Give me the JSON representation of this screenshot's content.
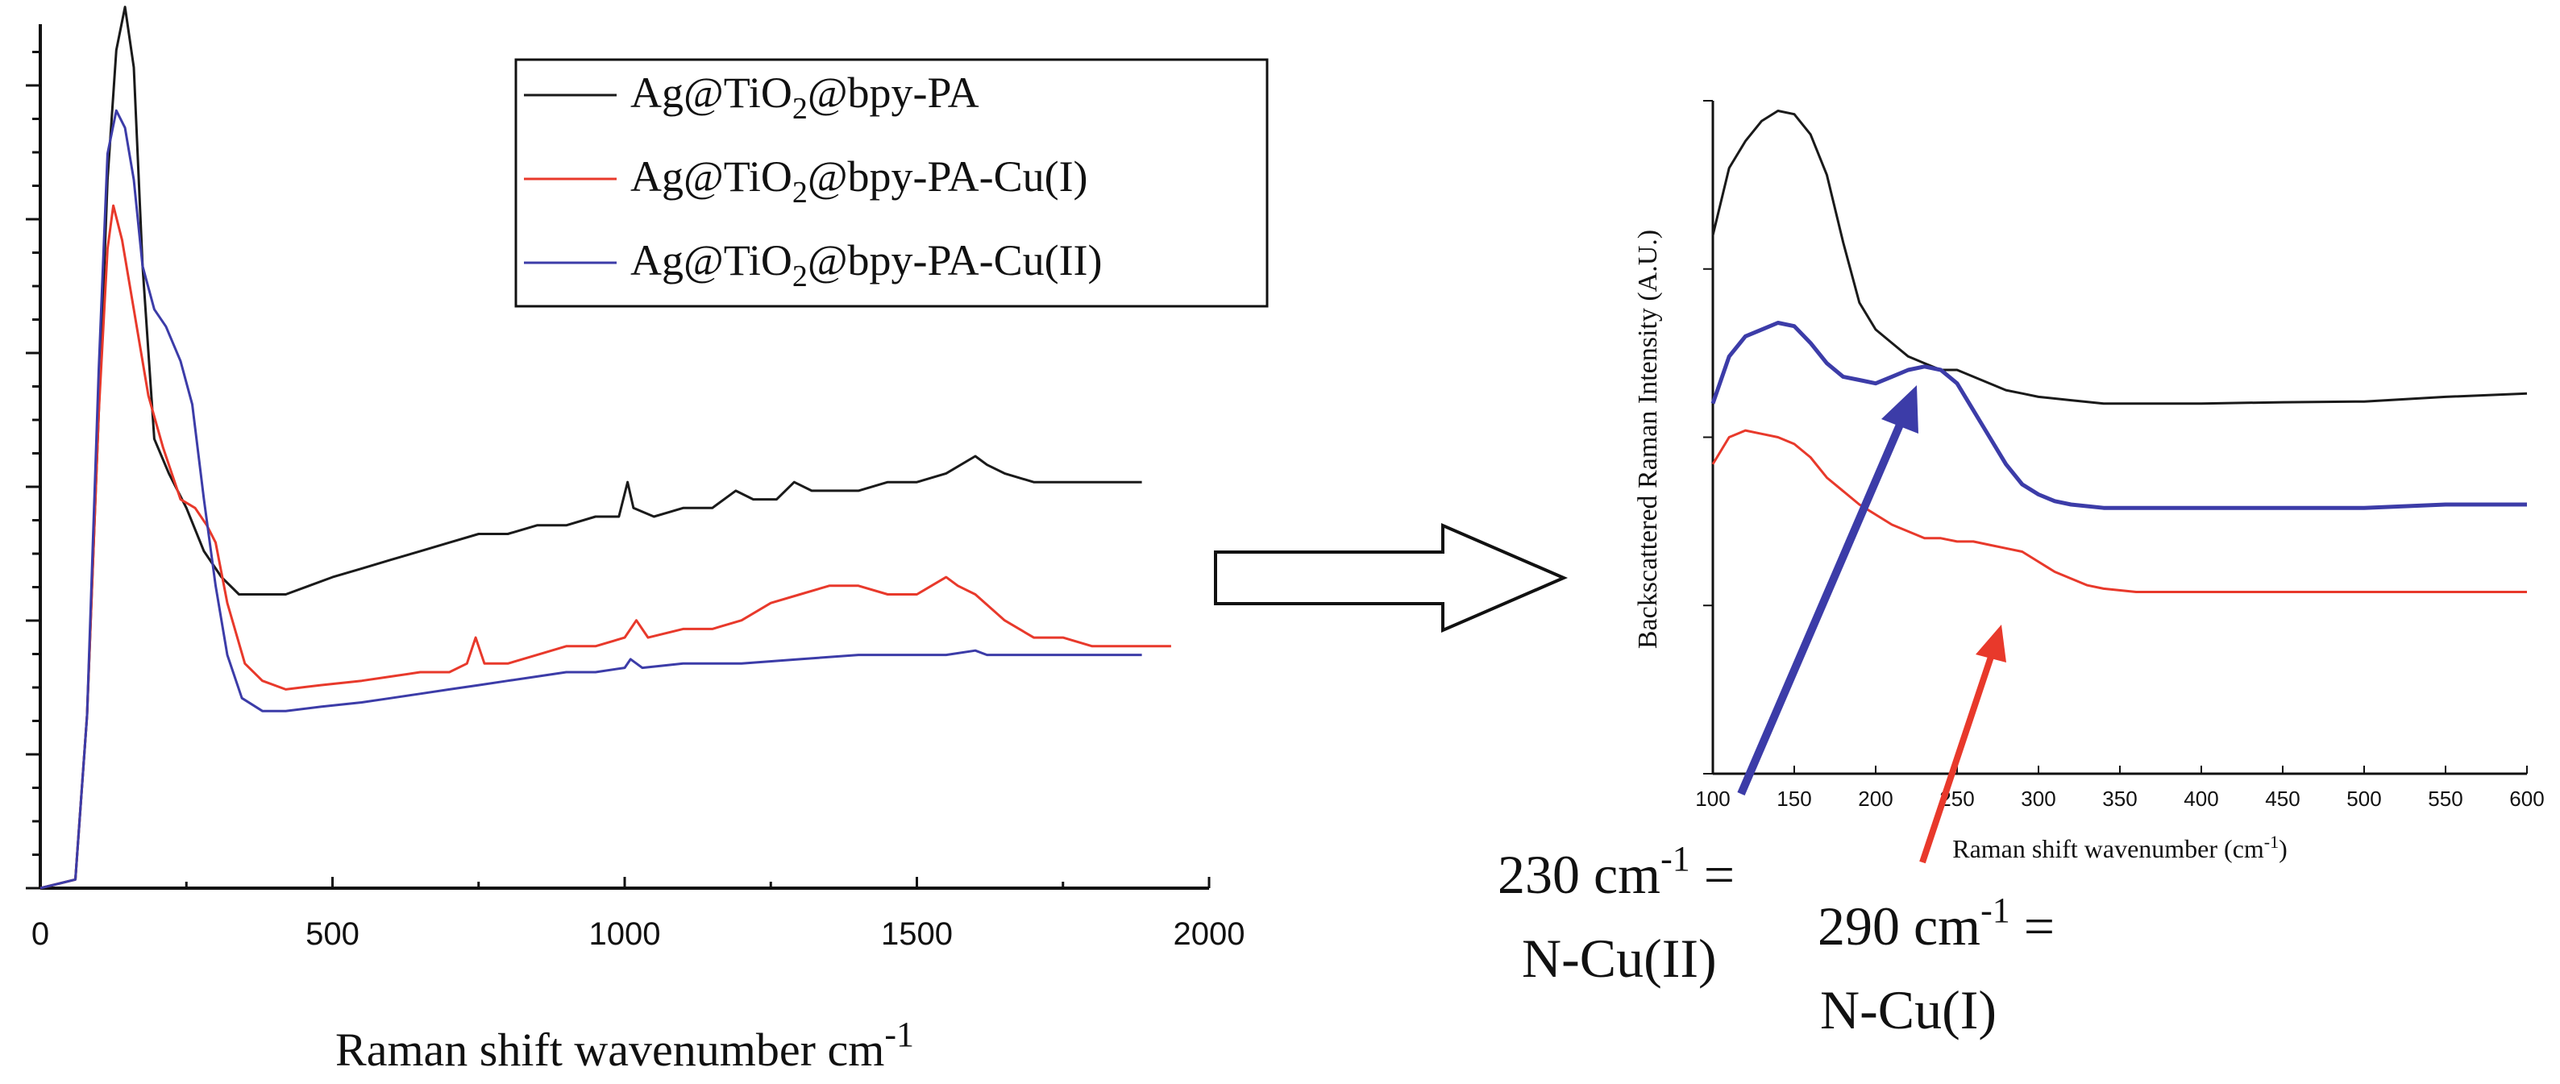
{
  "colors": {
    "black_series": "#1a1a1a",
    "red_series": "#e8392b",
    "blue_series": "#3c3ca8",
    "axis": "#111111"
  },
  "arrow_label": "right-arrow-icon",
  "chart_data": [
    {
      "type": "line",
      "title": "",
      "xlabel": "Raman shift wavenumber cm",
      "xlabel_superscript": "-1",
      "ylabel": "",
      "xlim": [
        0,
        2000
      ],
      "ylim": [
        0,
        1.0
      ],
      "xticks": [
        "0",
        "500",
        "1000",
        "1500",
        "2000"
      ],
      "legend": {
        "placement": "top-right",
        "entries": [
          {
            "prefix": "Ag@TiO",
            "sub": "2",
            "suffix": "@bpy-PA"
          },
          {
            "prefix": "Ag@TiO",
            "sub": "2",
            "suffix": "@bpy-PA-Cu(I)"
          },
          {
            "prefix": "Ag@TiO",
            "sub": "2",
            "suffix": "@bpy-PA-Cu(II)"
          }
        ]
      },
      "series": [
        {
          "name": "Ag@TiO2@bpy-PA",
          "color_key": "black_series",
          "points": [
            [
              0,
              0.0
            ],
            [
              60,
              0.01
            ],
            [
              80,
              0.2
            ],
            [
              100,
              0.55
            ],
            [
              115,
              0.82
            ],
            [
              130,
              0.97
            ],
            [
              145,
              1.02
            ],
            [
              160,
              0.95
            ],
            [
              175,
              0.72
            ],
            [
              195,
              0.52
            ],
            [
              220,
              0.48
            ],
            [
              250,
              0.44
            ],
            [
              280,
              0.39
            ],
            [
              310,
              0.36
            ],
            [
              340,
              0.34
            ],
            [
              380,
              0.34
            ],
            [
              420,
              0.34
            ],
            [
              460,
              0.35
            ],
            [
              500,
              0.36
            ],
            [
              550,
              0.37
            ],
            [
              600,
              0.38
            ],
            [
              650,
              0.39
            ],
            [
              700,
              0.4
            ],
            [
              750,
              0.41
            ],
            [
              800,
              0.41
            ],
            [
              850,
              0.42
            ],
            [
              900,
              0.42
            ],
            [
              950,
              0.43
            ],
            [
              990,
              0.43
            ],
            [
              1005,
              0.47
            ],
            [
              1015,
              0.44
            ],
            [
              1050,
              0.43
            ],
            [
              1100,
              0.44
            ],
            [
              1150,
              0.44
            ],
            [
              1190,
              0.46
            ],
            [
              1220,
              0.45
            ],
            [
              1260,
              0.45
            ],
            [
              1290,
              0.47
            ],
            [
              1320,
              0.46
            ],
            [
              1360,
              0.46
            ],
            [
              1400,
              0.46
            ],
            [
              1450,
              0.47
            ],
            [
              1500,
              0.47
            ],
            [
              1550,
              0.48
            ],
            [
              1600,
              0.5
            ],
            [
              1620,
              0.49
            ],
            [
              1650,
              0.48
            ],
            [
              1700,
              0.47
            ],
            [
              1750,
              0.47
            ],
            [
              1800,
              0.47
            ],
            [
              1885,
              0.47
            ]
          ]
        },
        {
          "name": "Ag@TiO2@bpy-PA-Cu(I)",
          "color_key": "red_series",
          "points": [
            [
              0,
              0.0
            ],
            [
              60,
              0.01
            ],
            [
              80,
              0.2
            ],
            [
              100,
              0.55
            ],
            [
              115,
              0.74
            ],
            [
              125,
              0.79
            ],
            [
              140,
              0.75
            ],
            [
              160,
              0.67
            ],
            [
              185,
              0.57
            ],
            [
              210,
              0.51
            ],
            [
              240,
              0.45
            ],
            [
              265,
              0.44
            ],
            [
              285,
              0.42
            ],
            [
              300,
              0.4
            ],
            [
              320,
              0.33
            ],
            [
              350,
              0.26
            ],
            [
              380,
              0.24
            ],
            [
              420,
              0.23
            ],
            [
              480,
              0.235
            ],
            [
              550,
              0.24
            ],
            [
              600,
              0.245
            ],
            [
              650,
              0.25
            ],
            [
              700,
              0.25
            ],
            [
              730,
              0.26
            ],
            [
              745,
              0.29
            ],
            [
              760,
              0.26
            ],
            [
              800,
              0.26
            ],
            [
              850,
              0.27
            ],
            [
              900,
              0.28
            ],
            [
              950,
              0.28
            ],
            [
              1000,
              0.29
            ],
            [
              1020,
              0.31
            ],
            [
              1040,
              0.29
            ],
            [
              1100,
              0.3
            ],
            [
              1150,
              0.3
            ],
            [
              1200,
              0.31
            ],
            [
              1250,
              0.33
            ],
            [
              1300,
              0.34
            ],
            [
              1350,
              0.35
            ],
            [
              1400,
              0.35
            ],
            [
              1450,
              0.34
            ],
            [
              1500,
              0.34
            ],
            [
              1550,
              0.36
            ],
            [
              1570,
              0.35
            ],
            [
              1600,
              0.34
            ],
            [
              1650,
              0.31
            ],
            [
              1700,
              0.29
            ],
            [
              1750,
              0.29
            ],
            [
              1800,
              0.28
            ],
            [
              1850,
              0.28
            ],
            [
              1935,
              0.28
            ]
          ]
        },
        {
          "name": "Ag@TiO2@bpy-PA-Cu(II)",
          "color_key": "blue_series",
          "points": [
            [
              0,
              0.0
            ],
            [
              60,
              0.01
            ],
            [
              80,
              0.2
            ],
            [
              100,
              0.6
            ],
            [
              115,
              0.85
            ],
            [
              130,
              0.9
            ],
            [
              145,
              0.88
            ],
            [
              160,
              0.82
            ],
            [
              175,
              0.72
            ],
            [
              195,
              0.67
            ],
            [
              215,
              0.65
            ],
            [
              240,
              0.61
            ],
            [
              260,
              0.56
            ],
            [
              280,
              0.45
            ],
            [
              300,
              0.35
            ],
            [
              320,
              0.27
            ],
            [
              345,
              0.22
            ],
            [
              380,
              0.205
            ],
            [
              420,
              0.205
            ],
            [
              480,
              0.21
            ],
            [
              550,
              0.215
            ],
            [
              600,
              0.22
            ],
            [
              650,
              0.225
            ],
            [
              700,
              0.23
            ],
            [
              750,
              0.235
            ],
            [
              800,
              0.24
            ],
            [
              850,
              0.245
            ],
            [
              900,
              0.25
            ],
            [
              950,
              0.25
            ],
            [
              1000,
              0.255
            ],
            [
              1010,
              0.265
            ],
            [
              1030,
              0.255
            ],
            [
              1100,
              0.26
            ],
            [
              1200,
              0.26
            ],
            [
              1300,
              0.265
            ],
            [
              1400,
              0.27
            ],
            [
              1500,
              0.27
            ],
            [
              1550,
              0.27
            ],
            [
              1600,
              0.275
            ],
            [
              1620,
              0.27
            ],
            [
              1700,
              0.27
            ],
            [
              1800,
              0.27
            ],
            [
              1885,
              0.27
            ]
          ]
        }
      ]
    },
    {
      "type": "line",
      "title": "",
      "xlabel": "Raman shift wavenumber (cm",
      "xlabel_superscript": "-1",
      "xlabel_end": ")",
      "ylabel": "Backscattered Raman Intensity (A.U.)",
      "xlim": [
        100,
        600
      ],
      "ylim": [
        0,
        1.0
      ],
      "xticks": [
        "100",
        "150",
        "200",
        "250",
        "300",
        "350",
        "400",
        "450",
        "500",
        "550",
        "600"
      ],
      "series": [
        {
          "name": "Ag@TiO2@bpy-PA",
          "color_key": "black_series",
          "points": [
            [
              100,
              0.8
            ],
            [
              110,
              0.9
            ],
            [
              120,
              0.94
            ],
            [
              130,
              0.97
            ],
            [
              140,
              0.985
            ],
            [
              150,
              0.98
            ],
            [
              160,
              0.95
            ],
            [
              170,
              0.89
            ],
            [
              180,
              0.79
            ],
            [
              190,
              0.7
            ],
            [
              200,
              0.66
            ],
            [
              210,
              0.64
            ],
            [
              220,
              0.62
            ],
            [
              230,
              0.61
            ],
            [
              240,
              0.6
            ],
            [
              250,
              0.6
            ],
            [
              260,
              0.59
            ],
            [
              270,
              0.58
            ],
            [
              280,
              0.57
            ],
            [
              290,
              0.565
            ],
            [
              300,
              0.56
            ],
            [
              320,
              0.555
            ],
            [
              340,
              0.55
            ],
            [
              360,
              0.55
            ],
            [
              400,
              0.55
            ],
            [
              450,
              0.552
            ],
            [
              500,
              0.553
            ],
            [
              550,
              0.56
            ],
            [
              600,
              0.565
            ]
          ]
        },
        {
          "name": "Ag@TiO2@bpy-PA-Cu(II)",
          "color_key": "blue_series",
          "points": [
            [
              100,
              0.55
            ],
            [
              110,
              0.62
            ],
            [
              120,
              0.65
            ],
            [
              130,
              0.66
            ],
            [
              140,
              0.67
            ],
            [
              150,
              0.665
            ],
            [
              160,
              0.64
            ],
            [
              170,
              0.61
            ],
            [
              180,
              0.59
            ],
            [
              190,
              0.585
            ],
            [
              200,
              0.58
            ],
            [
              210,
              0.59
            ],
            [
              220,
              0.6
            ],
            [
              230,
              0.605
            ],
            [
              240,
              0.6
            ],
            [
              250,
              0.58
            ],
            [
              260,
              0.54
            ],
            [
              270,
              0.5
            ],
            [
              280,
              0.46
            ],
            [
              290,
              0.43
            ],
            [
              300,
              0.415
            ],
            [
              310,
              0.405
            ],
            [
              320,
              0.4
            ],
            [
              340,
              0.395
            ],
            [
              360,
              0.395
            ],
            [
              400,
              0.395
            ],
            [
              450,
              0.395
            ],
            [
              500,
              0.395
            ],
            [
              550,
              0.4
            ],
            [
              600,
              0.4
            ]
          ]
        },
        {
          "name": "Ag@TiO2@bpy-PA-Cu(I)",
          "color_key": "red_series",
          "points": [
            [
              100,
              0.46
            ],
            [
              110,
              0.5
            ],
            [
              120,
              0.51
            ],
            [
              130,
              0.505
            ],
            [
              140,
              0.5
            ],
            [
              150,
              0.49
            ],
            [
              160,
              0.47
            ],
            [
              170,
              0.44
            ],
            [
              180,
              0.42
            ],
            [
              190,
              0.4
            ],
            [
              200,
              0.385
            ],
            [
              210,
              0.37
            ],
            [
              220,
              0.36
            ],
            [
              230,
              0.35
            ],
            [
              240,
              0.35
            ],
            [
              250,
              0.345
            ],
            [
              260,
              0.345
            ],
            [
              270,
              0.34
            ],
            [
              280,
              0.335
            ],
            [
              290,
              0.33
            ],
            [
              300,
              0.315
            ],
            [
              310,
              0.3
            ],
            [
              320,
              0.29
            ],
            [
              330,
              0.28
            ],
            [
              340,
              0.275
            ],
            [
              360,
              0.27
            ],
            [
              400,
              0.27
            ],
            [
              450,
              0.27
            ],
            [
              500,
              0.27
            ],
            [
              550,
              0.27
            ],
            [
              600,
              0.27
            ]
          ]
        }
      ],
      "annotations": [
        {
          "id": "cu2",
          "value_text": "230 cm",
          "sup": "-1",
          "suffix": " =",
          "line2": "N-Cu(II)",
          "color_key": "blue_series",
          "points_to": 230
        },
        {
          "id": "cu1",
          "value_text": "290 cm",
          "sup": "-1",
          "suffix": " =",
          "line2": "N-Cu(I)",
          "color_key": "red_series",
          "points_to": 290
        }
      ]
    }
  ]
}
